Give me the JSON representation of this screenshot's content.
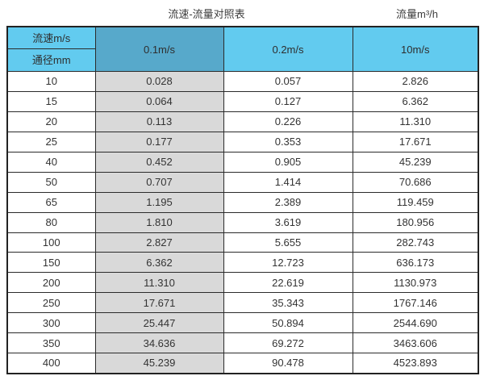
{
  "titles": {
    "main": "流速-流量对照表",
    "unit": "流量m³/h"
  },
  "table": {
    "corner_top": "流速m/s",
    "corner_bottom": "通径mm",
    "columns": [
      "0.1m/s",
      "0.2m/s",
      "10m/s"
    ]
  },
  "colors": {
    "header_blue": "#62cbef",
    "header_blue_dark": "#57a9cb",
    "shaded_column": "#d9d9d9",
    "border": "#2b2b2b",
    "text": "#333333"
  },
  "chart_data": {
    "type": "table",
    "title": "流速-流量对照表",
    "unit_label": "流量m³/h",
    "corner_labels": [
      "流速m/s",
      "通径mm"
    ],
    "columns": [
      "通径mm",
      "0.1m/s",
      "0.2m/s",
      "10m/s"
    ],
    "rows": [
      [
        "10",
        "0.028",
        "0.057",
        "2.826"
      ],
      [
        "15",
        "0.064",
        "0.127",
        "6.362"
      ],
      [
        "20",
        "0.113",
        "0.226",
        "11.310"
      ],
      [
        "25",
        "0.177",
        "0.353",
        "17.671"
      ],
      [
        "40",
        "0.452",
        "0.905",
        "45.239"
      ],
      [
        "50",
        "0.707",
        "1.414",
        "70.686"
      ],
      [
        "65",
        "1.195",
        "2.389",
        "119.459"
      ],
      [
        "80",
        "1.810",
        "3.619",
        "180.956"
      ],
      [
        "100",
        "2.827",
        "5.655",
        "282.743"
      ],
      [
        "150",
        "6.362",
        "12.723",
        "636.173"
      ],
      [
        "200",
        "11.310",
        "22.619",
        "1130.973"
      ],
      [
        "250",
        "17.671",
        "35.343",
        "1767.146"
      ],
      [
        "300",
        "25.447",
        "50.894",
        "2544.690"
      ],
      [
        "350",
        "34.636",
        "69.272",
        "3463.606"
      ],
      [
        "400",
        "45.239",
        "90.478",
        "4523.893"
      ]
    ]
  }
}
